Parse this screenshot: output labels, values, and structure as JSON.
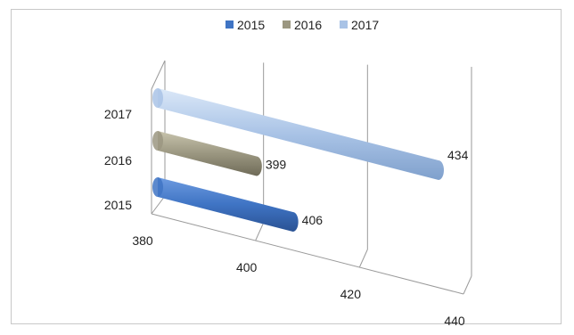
{
  "chart_data": {
    "type": "bar",
    "orientation": "horizontal-3d-cylinder",
    "categories": [
      "2015",
      "2016",
      "2017"
    ],
    "series": [
      {
        "name": "2015",
        "values": [
          406,
          null,
          null
        ],
        "color": "#3f74c4"
      },
      {
        "name": "2016",
        "values": [
          null,
          399,
          null
        ],
        "color": "#9b9781"
      },
      {
        "name": "2017",
        "values": [
          null,
          null,
          434
        ],
        "color": "#a9c3e6"
      }
    ],
    "data_labels": [
      "406",
      "399",
      "434"
    ],
    "xlim": [
      380,
      440
    ],
    "x_ticks": [
      "380",
      "400",
      "420",
      "440"
    ],
    "legend": {
      "position": "top",
      "entries": [
        "2015",
        "2016",
        "2017"
      ]
    },
    "grid": true
  }
}
